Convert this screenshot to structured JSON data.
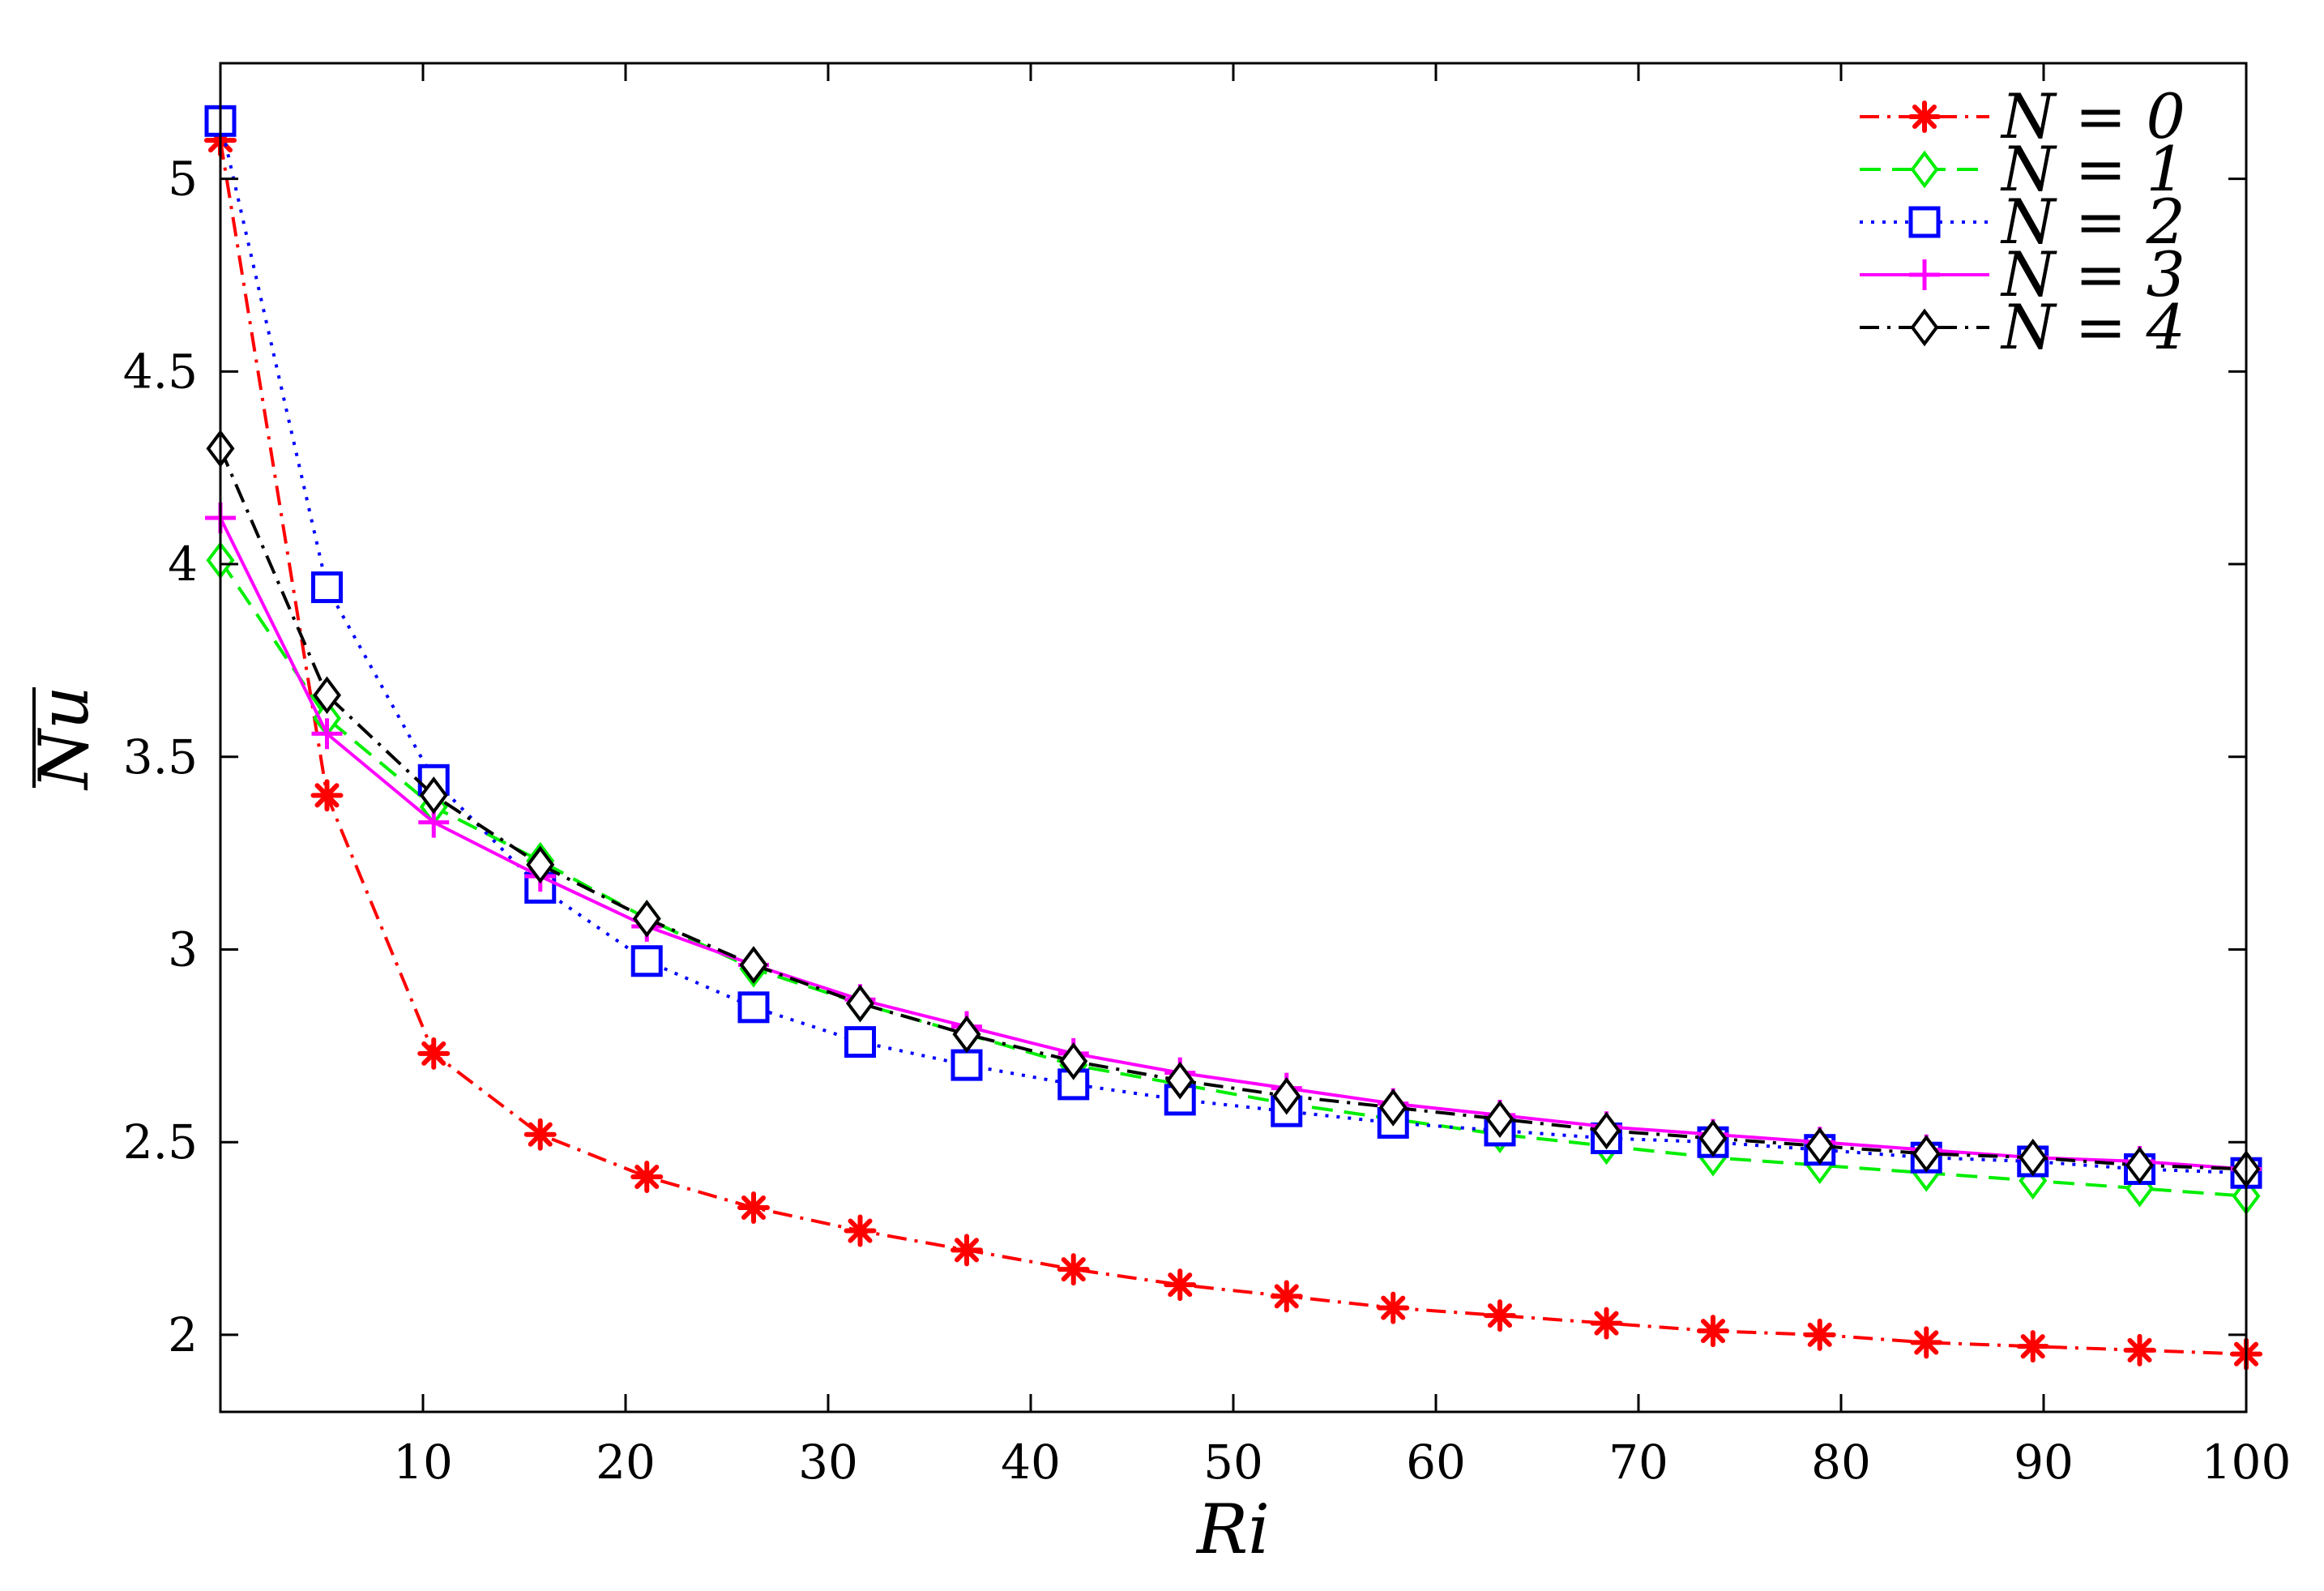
{
  "chart_data": {
    "type": "line",
    "xlabel": "Ri",
    "ylabel": "Nu",
    "ylabel_overline": true,
    "xlim": [
      0,
      100
    ],
    "ylim": [
      1.8,
      5.3
    ],
    "xticks": [
      10,
      20,
      30,
      40,
      50,
      60,
      70,
      80,
      90,
      100
    ],
    "yticks": [
      2,
      2.5,
      3,
      3.5,
      4,
      4.5,
      5
    ],
    "ytick_labels": [
      "2",
      "2.5",
      "3",
      "3.5",
      "4",
      "4.5",
      "5"
    ],
    "grid": false,
    "legend_position": "top-right",
    "x": [
      0,
      5.26,
      10.53,
      15.79,
      21.05,
      26.32,
      31.58,
      36.84,
      42.11,
      47.37,
      52.63,
      57.89,
      63.16,
      68.42,
      73.68,
      78.95,
      84.21,
      89.47,
      94.74,
      100
    ],
    "series": [
      {
        "name": "N = 0",
        "color": "#ff0000",
        "marker": "asterisk",
        "dash": "dash-dot",
        "values": [
          5.1,
          3.4,
          2.73,
          2.52,
          2.41,
          2.33,
          2.27,
          2.22,
          2.17,
          2.13,
          2.1,
          2.07,
          2.05,
          2.03,
          2.01,
          2.0,
          1.98,
          1.97,
          1.96,
          1.95
        ]
      },
      {
        "name": "N = 1",
        "color": "#00ee00",
        "marker": "diamond",
        "dash": "dashed",
        "values": [
          4.01,
          3.6,
          3.37,
          3.23,
          3.08,
          2.95,
          2.86,
          2.78,
          2.7,
          2.65,
          2.6,
          2.56,
          2.52,
          2.49,
          2.46,
          2.44,
          2.42,
          2.4,
          2.38,
          2.36
        ]
      },
      {
        "name": "N = 2",
        "color": "#0000ff",
        "marker": "square",
        "dash": "dotted",
        "values": [
          5.15,
          3.94,
          3.44,
          3.16,
          2.97,
          2.85,
          2.76,
          2.7,
          2.65,
          2.61,
          2.58,
          2.55,
          2.53,
          2.51,
          2.5,
          2.48,
          2.46,
          2.45,
          2.43,
          2.42
        ]
      },
      {
        "name": "N = 3",
        "color": "#ff00ff",
        "marker": "plus",
        "dash": "solid",
        "values": [
          4.12,
          3.56,
          3.33,
          3.19,
          3.06,
          2.96,
          2.87,
          2.8,
          2.73,
          2.68,
          2.64,
          2.6,
          2.57,
          2.54,
          2.52,
          2.5,
          2.48,
          2.46,
          2.45,
          2.43
        ]
      },
      {
        "name": "N = 4",
        "color": "#000000",
        "marker": "diamond",
        "dash": "dash-dot",
        "values": [
          4.3,
          3.66,
          3.4,
          3.22,
          3.08,
          2.96,
          2.86,
          2.78,
          2.71,
          2.66,
          2.62,
          2.59,
          2.56,
          2.53,
          2.51,
          2.49,
          2.47,
          2.46,
          2.44,
          2.43
        ]
      }
    ]
  }
}
